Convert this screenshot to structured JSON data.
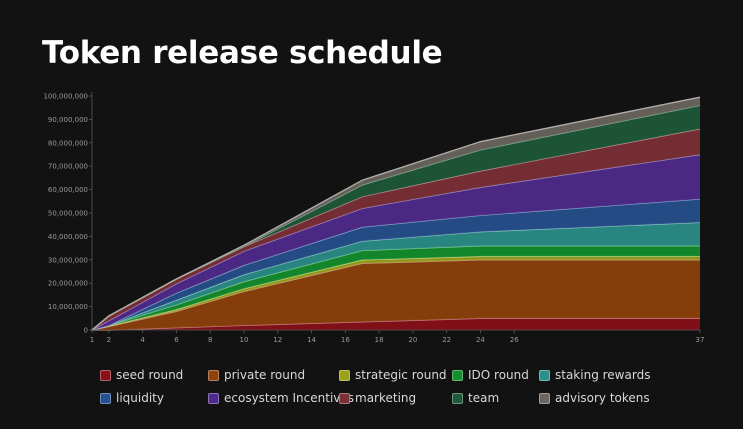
{
  "title": "Token release schedule",
  "chart_data": {
    "type": "area",
    "stacked": true,
    "title": "Token release schedule",
    "xlabel": "",
    "ylabel": "",
    "x": [
      1,
      2,
      6,
      10,
      17,
      24,
      37
    ],
    "xticks": [
      1,
      2,
      4,
      6,
      8,
      10,
      12,
      14,
      16,
      18,
      20,
      22,
      24,
      26,
      37
    ],
    "ylim": [
      0,
      100000000
    ],
    "yticks": [
      0,
      10000000,
      20000000,
      30000000,
      40000000,
      50000000,
      60000000,
      70000000,
      80000000,
      90000000,
      100000000
    ],
    "ytick_labels": [
      "0",
      "10,000,000",
      "20,000,000",
      "30,000,000",
      "40,000,000",
      "50,000,000",
      "60,000,000",
      "70,000,000",
      "80,000,000",
      "90,000,000",
      "100,000,000"
    ],
    "legend_position": "bottom",
    "grid": false,
    "series": [
      {
        "name": "seed round",
        "color": "#8b0f18",
        "values": [
          0,
          0,
          1000000,
          2000000,
          3500000,
          5000000,
          5000000
        ]
      },
      {
        "name": "private round",
        "color": "#8f410c",
        "values": [
          0,
          1500000,
          7000000,
          14500000,
          25000000,
          25000000,
          25000000
        ]
      },
      {
        "name": "strategic round",
        "color": "#9aa21a",
        "values": [
          0,
          250000,
          800000,
          1200000,
          1500000,
          1500000,
          1500000
        ]
      },
      {
        "name": "IDO round",
        "color": "#14902f",
        "values": [
          0,
          250000,
          2000000,
          3000000,
          4000000,
          4500000,
          4500000
        ]
      },
      {
        "name": "staking rewards",
        "color": "#2b8f8a",
        "values": [
          0,
          0,
          2000000,
          3000000,
          4000000,
          6000000,
          10000000
        ]
      },
      {
        "name": "liquidity",
        "color": "#27508f",
        "values": [
          0,
          0,
          3000000,
          4000000,
          6000000,
          7000000,
          10000000
        ]
      },
      {
        "name": "ecosystem Incentives",
        "color": "#4f2a8e",
        "values": [
          0,
          2000000,
          4000000,
          6000000,
          8000000,
          12000000,
          19000000
        ]
      },
      {
        "name": "marketing",
        "color": "#7c3036",
        "values": [
          0,
          2000000,
          2000000,
          2000000,
          5000000,
          7000000,
          11000000
        ]
      },
      {
        "name": "team",
        "color": "#1e5a3a",
        "values": [
          0,
          0,
          0,
          0,
          5000000,
          9000000,
          10000000
        ]
      },
      {
        "name": "advisory tokens",
        "color": "#6d6660",
        "values": [
          0,
          0,
          0,
          500000,
          2000000,
          3500000,
          3500000
        ]
      }
    ]
  }
}
